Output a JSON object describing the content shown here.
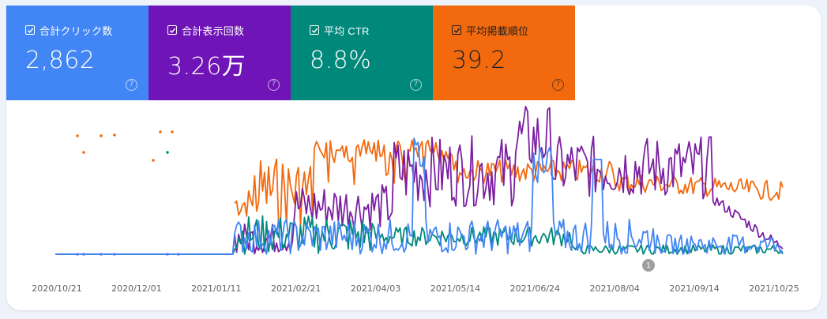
{
  "metrics": [
    {
      "label": "合計クリック数",
      "value": "2,862",
      "color": "#4285f4",
      "text_color": "#ffffff"
    },
    {
      "label": "合計表示回数",
      "value": "3.26万",
      "color": "#6f14b6",
      "text_color": "#ffffff"
    },
    {
      "label": "平均 CTR",
      "value": "8.8%",
      "color": "#00897b",
      "text_color": "#ffffff"
    },
    {
      "label": "平均掲載順位",
      "value": "39.2",
      "color": "#f36a0e",
      "text_color": "#202124"
    }
  ],
  "help_icon_glyph": "?",
  "annotation": {
    "label": "1"
  },
  "chart_data": {
    "type": "line",
    "x_ticks": [
      "2020/10/21",
      "2020/12/01",
      "2021/01/11",
      "2021/02/21",
      "2021/04/03",
      "2021/05/14",
      "2021/06/24",
      "2021/08/04",
      "2021/09/14",
      "2021/10/25"
    ],
    "series_colors": {
      "clicks": "#4285f4",
      "impressions": "#7b1fa2",
      "ctr": "#00897b",
      "position": "#f36a0e"
    },
    "grid": false,
    "legend": "none (metric tiles above act as legend)"
  }
}
